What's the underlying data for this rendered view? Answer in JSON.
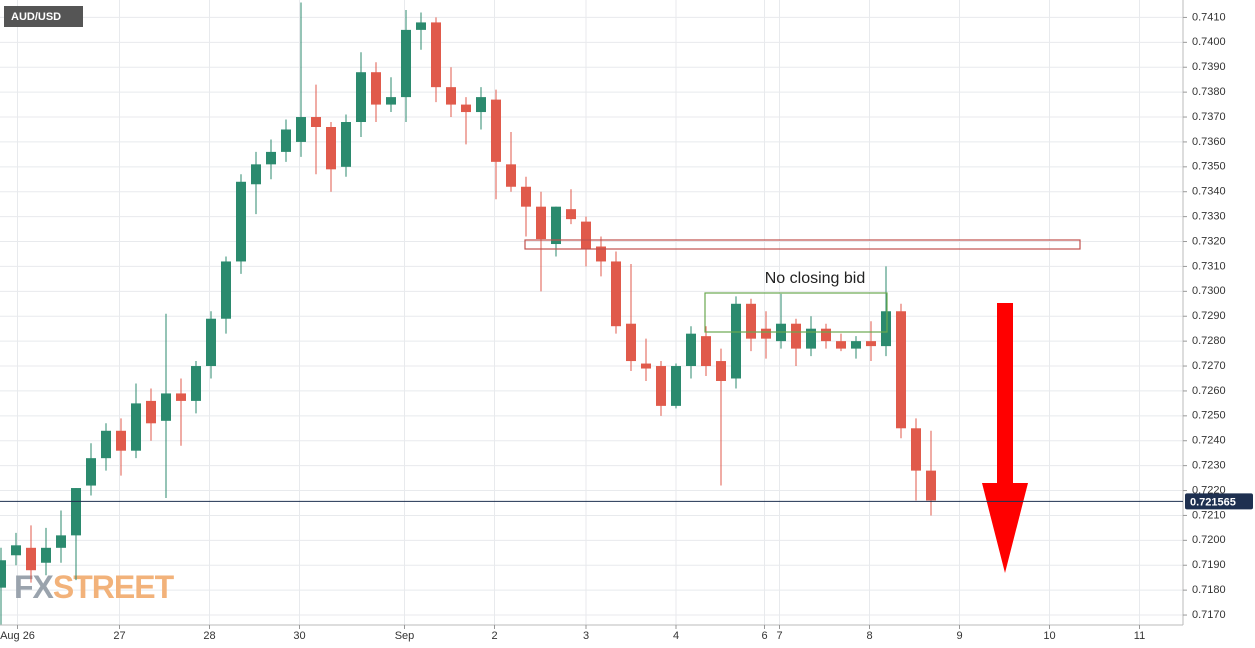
{
  "chart_data": {
    "type": "candlestick",
    "title": "AUD/USD",
    "annotation": "No closing bid",
    "watermark": [
      "FX",
      "STREET"
    ],
    "up_color": "#2b8a6e",
    "down_color": "#e05a4b",
    "last_price": 0.721565,
    "last_price_color": "#1e3050",
    "open": [
      0.7181,
      0.7194,
      0.7197,
      0.7191,
      0.7197,
      0.7202,
      0.7222,
      0.7233,
      0.7244,
      0.7236,
      0.7256,
      0.7248,
      0.7259,
      0.7256,
      0.727,
      0.7289,
      0.7312,
      0.7343,
      0.7351,
      0.7356,
      0.736,
      0.737,
      0.7366,
      0.735,
      0.7368,
      0.7388,
      0.7375,
      0.7378,
      0.7405,
      0.7408,
      0.7382,
      0.7375,
      0.7372,
      0.7377,
      0.7351,
      0.7342,
      0.7334,
      0.7319,
      0.7333,
      0.7328,
      0.7318,
      0.7312,
      0.7287,
      0.7271,
      0.727,
      0.7254,
      0.727,
      0.7282,
      0.7272,
      0.7265,
      0.7295,
      0.7285,
      0.728,
      0.7287,
      0.7277,
      0.7285,
      0.728,
      0.7277,
      0.728,
      0.7278,
      0.7292,
      0.7245,
      0.7228
    ],
    "high": [
      0.7197,
      0.7203,
      0.7206,
      0.7205,
      0.7212,
      0.7221,
      0.7239,
      0.7247,
      0.7249,
      0.7263,
      0.7261,
      0.7291,
      0.7265,
      0.7272,
      0.7292,
      0.7314,
      0.7347,
      0.7356,
      0.7361,
      0.7369,
      0.7416,
      0.7383,
      0.7368,
      0.7371,
      0.7396,
      0.7392,
      0.7386,
      0.7413,
      0.7412,
      0.741,
      0.739,
      0.7378,
      0.7382,
      0.7381,
      0.7364,
      0.7346,
      0.734,
      0.7334,
      0.7341,
      0.733,
      0.7322,
      0.7316,
      0.7311,
      0.7281,
      0.7272,
      0.7271,
      0.7286,
      0.7286,
      0.7277,
      0.7298,
      0.7297,
      0.7292,
      0.7299,
      0.7289,
      0.729,
      0.7287,
      0.7283,
      0.7282,
      0.7288,
      0.731,
      0.7295,
      0.7249,
      0.7244
    ],
    "low": [
      0.7166,
      0.719,
      0.7183,
      0.7186,
      0.7191,
      0.7184,
      0.7218,
      0.7228,
      0.7226,
      0.7233,
      0.724,
      0.7217,
      0.7238,
      0.7251,
      0.7265,
      0.7283,
      0.7307,
      0.7331,
      0.7345,
      0.7352,
      0.7354,
      0.7347,
      0.734,
      0.7346,
      0.7362,
      0.7368,
      0.7372,
      0.7368,
      0.7397,
      0.7376,
      0.737,
      0.7359,
      0.7365,
      0.7337,
      0.734,
      0.7322,
      0.73,
      0.7314,
      0.7327,
      0.731,
      0.7306,
      0.7283,
      0.7268,
      0.7264,
      0.725,
      0.7253,
      0.7265,
      0.7266,
      0.7222,
      0.7261,
      0.7276,
      0.7273,
      0.7277,
      0.727,
      0.7274,
      0.7277,
      0.7276,
      0.7273,
      0.7272,
      0.7274,
      0.7241,
      0.7216,
      0.721
    ],
    "close": [
      0.7192,
      0.7198,
      0.7188,
      0.7197,
      0.7202,
      0.7221,
      0.7233,
      0.7244,
      0.7236,
      0.7255,
      0.7247,
      0.7259,
      0.7256,
      0.727,
      0.7289,
      0.7312,
      0.7344,
      0.7351,
      0.7356,
      0.7365,
      0.737,
      0.7366,
      0.7349,
      0.7368,
      0.7388,
      0.7375,
      0.7378,
      0.7405,
      0.7408,
      0.7382,
      0.7375,
      0.7372,
      0.7378,
      0.7352,
      0.7342,
      0.7334,
      0.7321,
      0.7334,
      0.7329,
      0.7317,
      0.7312,
      0.7286,
      0.7272,
      0.7269,
      0.7254,
      0.727,
      0.7283,
      0.727,
      0.7264,
      0.7295,
      0.7281,
      0.7281,
      0.7287,
      0.7277,
      0.7285,
      0.728,
      0.7277,
      0.728,
      0.7278,
      0.7292,
      0.7245,
      0.7228,
      0.7216
    ],
    "xticks": [
      {
        "value": 1.1,
        "label": "Aug 26"
      },
      {
        "value": 7.9,
        "label": "27"
      },
      {
        "value": 13.9,
        "label": "28"
      },
      {
        "value": 19.9,
        "label": "30"
      },
      {
        "value": 26.9,
        "label": "Sep"
      },
      {
        "value": 32.9,
        "label": "2"
      },
      {
        "value": 39,
        "label": "3"
      },
      {
        "value": 45,
        "label": "4"
      },
      {
        "value": 50.9,
        "label": "6"
      },
      {
        "value": 51.9,
        "label": "7"
      },
      {
        "value": 57.9,
        "label": "8"
      },
      {
        "value": 63.9,
        "label": "9"
      },
      {
        "value": 69.9,
        "label": "10"
      },
      {
        "value": 75.9,
        "label": "11"
      }
    ],
    "ylim": [
      0.7166,
      0.7417
    ],
    "yticks": [
      {
        "value": 0.717,
        "label": "0.7170"
      },
      {
        "value": 0.718,
        "label": "0.7180"
      },
      {
        "value": 0.719,
        "label": "0.7190"
      },
      {
        "value": 0.72,
        "label": "0.7200"
      },
      {
        "value": 0.721,
        "label": "0.7210"
      },
      {
        "value": 0.722,
        "label": "0.7220"
      },
      {
        "value": 0.723,
        "label": "0.7230"
      },
      {
        "value": 0.724,
        "label": "0.7240"
      },
      {
        "value": 0.725,
        "label": "0.7250"
      },
      {
        "value": 0.726,
        "label": "0.7260"
      },
      {
        "value": 0.727,
        "label": "0.7270"
      },
      {
        "value": 0.728,
        "label": "0.7280"
      },
      {
        "value": 0.729,
        "label": "0.7290"
      },
      {
        "value": 0.73,
        "label": "0.7300"
      },
      {
        "value": 0.731,
        "label": "0.7310"
      },
      {
        "value": 0.732,
        "label": "0.7320"
      },
      {
        "value": 0.733,
        "label": "0.7330"
      },
      {
        "value": 0.734,
        "label": "0.7340"
      },
      {
        "value": 0.735,
        "label": "0.7350"
      },
      {
        "value": 0.736,
        "label": "0.7360"
      },
      {
        "value": 0.737,
        "label": "0.7370"
      },
      {
        "value": 0.738,
        "label": "0.7380"
      },
      {
        "value": 0.739,
        "label": "0.7390"
      },
      {
        "value": 0.74,
        "label": "0.7400"
      },
      {
        "value": 0.741,
        "label": "0.7410"
      }
    ],
    "grid": true
  }
}
